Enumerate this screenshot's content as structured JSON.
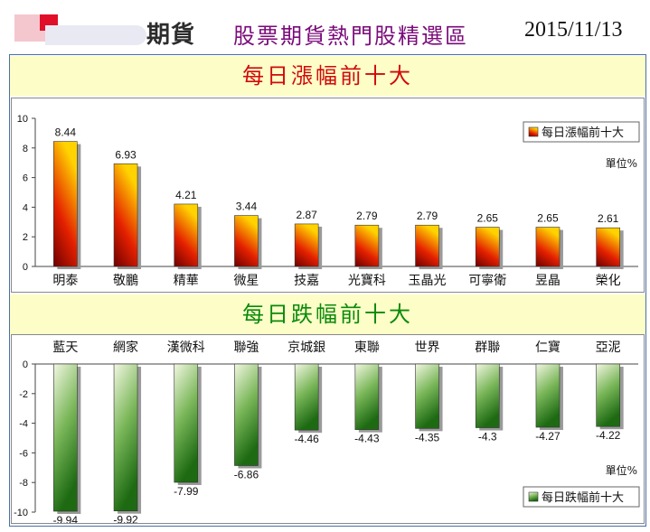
{
  "header": {
    "logo_text": "期貨",
    "title": "股票期貨熱門股精選區",
    "date": "2015/11/13"
  },
  "colors": {
    "band_bg": "#fdfdc8",
    "gain_title": "#d10a0a",
    "loss_title": "#0a8a0a",
    "header_title": "#7a0a7a"
  },
  "chart_data": [
    {
      "type": "bar",
      "title": "每日漲幅前十大",
      "categories": [
        "明泰",
        "敬鵬",
        "精華",
        "微星",
        "技嘉",
        "光寶科",
        "玉晶光",
        "可寧衛",
        "昱晶",
        "榮化"
      ],
      "values": [
        8.44,
        6.93,
        4.21,
        3.44,
        2.87,
        2.79,
        2.79,
        2.65,
        2.65,
        2.61
      ],
      "value_labels": [
        "8.44",
        "6.93",
        "4.21",
        "3.44",
        "2.87",
        "2.79",
        "2.79",
        "2.65",
        "2.65",
        "2.61"
      ],
      "ylim": [
        0,
        10
      ],
      "yticks": [
        "0",
        "2",
        "4",
        "6",
        "8",
        "10"
      ],
      "legend": "每日漲幅前十大",
      "legend_position": "top-right",
      "unit": "單位%",
      "grid": false
    },
    {
      "type": "bar",
      "title": "每日跌幅前十大",
      "categories": [
        "藍天",
        "網家",
        "漢微科",
        "聯強",
        "京城銀",
        "東聯",
        "世界",
        "群聯",
        "仁寶",
        "亞泥"
      ],
      "values": [
        -9.94,
        -9.92,
        -7.99,
        -6.86,
        -4.46,
        -4.43,
        -4.35,
        -4.3,
        -4.27,
        -4.22
      ],
      "value_labels": [
        "-9.94",
        "-9.92",
        "-7.99",
        "-6.86",
        "-4.46",
        "-4.43",
        "-4.35",
        "-4.3",
        "-4.27",
        "-4.22"
      ],
      "ylim": [
        -10,
        0
      ],
      "yticks": [
        "0",
        "-2",
        "-4",
        "-6",
        "-8",
        "-10"
      ],
      "legend": "每日跌幅前十大",
      "legend_position": "bottom-right",
      "unit": "單位%",
      "grid": false
    }
  ]
}
